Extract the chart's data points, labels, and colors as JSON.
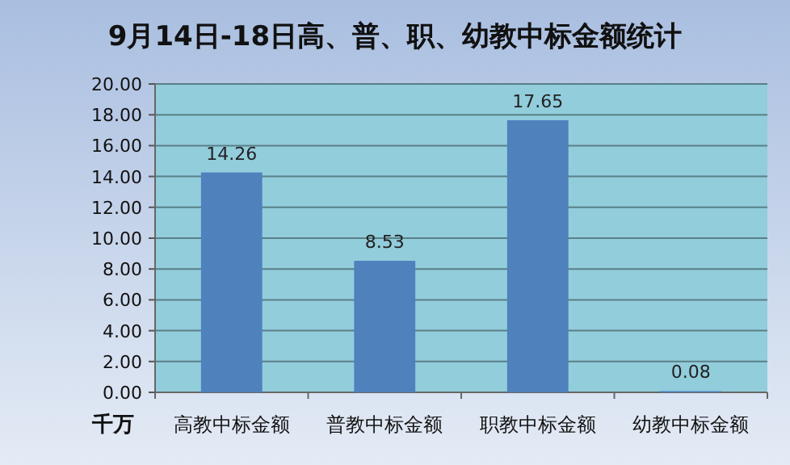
{
  "chart_data": {
    "type": "bar",
    "title": "9月14日-18日高、普、职、幼教中标金额统计",
    "ylabel": "千万",
    "categories": [
      "高教中标金额",
      "普教中标金额",
      "职教中标金额",
      "幼教中标金额"
    ],
    "values": [
      14.26,
      8.53,
      17.65,
      0.08
    ],
    "color": "#4f81bd",
    "ylim": [
      0,
      20
    ],
    "yticks": [
      {
        "value": 0,
        "label": "0.00"
      },
      {
        "value": 2,
        "label": "2.00"
      },
      {
        "value": 4,
        "label": "4.00"
      },
      {
        "value": 6,
        "label": "6.00"
      },
      {
        "value": 8,
        "label": "8.00"
      },
      {
        "value": 10,
        "label": "10.00"
      },
      {
        "value": 12,
        "label": "12.00"
      },
      {
        "value": 14,
        "label": "14.00"
      },
      {
        "value": 16,
        "label": "16.00"
      },
      {
        "value": 18,
        "label": "18.00"
      },
      {
        "value": 20,
        "label": "20.00"
      }
    ],
    "grid": "y",
    "data_labels": true
  }
}
